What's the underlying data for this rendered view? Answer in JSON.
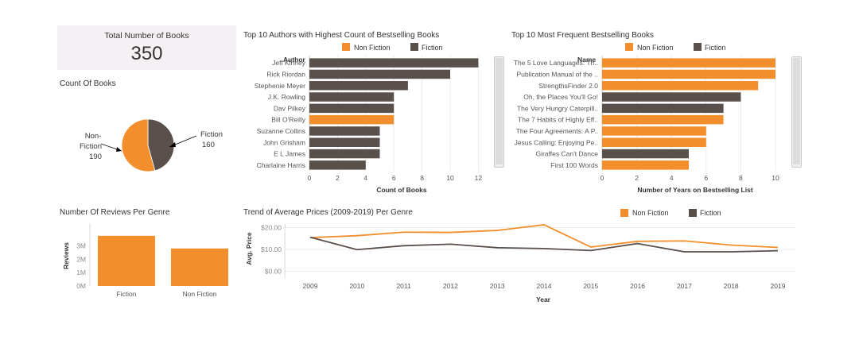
{
  "colors": {
    "non_fiction": "#f28e2b",
    "fiction": "#59504b",
    "pie_nf": "#f28e2b",
    "pie_f": "#59504b",
    "axis": "#d9d9d9",
    "text": "#555555"
  },
  "kpi": {
    "title": "Total Number of Books",
    "value": "350"
  },
  "pie": {
    "title": "Count Of Books",
    "nf_label_1": "Non-",
    "nf_label_2": "Fiction",
    "nf_value": "190",
    "f_label": "Fiction",
    "f_value": "160",
    "chart_data": {
      "type": "pie",
      "slices": [
        {
          "name": "Non-Fiction",
          "value": 190
        },
        {
          "name": "Fiction",
          "value": 160
        }
      ]
    }
  },
  "authors": {
    "title": "Top 10 Authors with Highest Count of Bestselling Books",
    "legend": {
      "nf": "Non Fiction",
      "f": "Fiction"
    },
    "y_header": "Author",
    "xlabel": "Count of Books",
    "ticks": [
      "0",
      "2",
      "4",
      "6",
      "8",
      "10",
      "12"
    ],
    "chart_data": {
      "type": "bar",
      "orientation": "horizontal",
      "categories": [
        "Jeff Kinney",
        "Rick Riordan",
        "Stephenie Meyer",
        "J.K. Rowling",
        "Dav Pilkey",
        "Bill O'Reilly",
        "Suzanne Collins",
        "John Grisham",
        "E L James",
        "Charlaine Harris"
      ],
      "values": [
        12,
        10,
        7,
        6,
        6,
        6,
        5,
        5,
        5,
        4
      ],
      "genre": [
        "Fiction",
        "Fiction",
        "Fiction",
        "Fiction",
        "Fiction",
        "Non Fiction",
        "Fiction",
        "Fiction",
        "Fiction",
        "Fiction"
      ],
      "xlabel": "Count of Books",
      "xlim": [
        0,
        13
      ]
    }
  },
  "books": {
    "title": "Top 10 Most Frequent Bestselling Books",
    "legend": {
      "nf": "Non Fiction",
      "f": "Fiction"
    },
    "y_header": "Name",
    "xlabel": "Number of Years on Bestselling List",
    "ticks": [
      "0",
      "2",
      "4",
      "6",
      "8",
      "10"
    ],
    "chart_data": {
      "type": "bar",
      "orientation": "horizontal",
      "categories": [
        "The 5 Love Languages: Th..",
        "Publication Manual of the ..",
        "StrengthsFinder 2.0",
        "Oh, the Places You'll Go!",
        "The Very Hungry Caterpill..",
        "The 7 Habits of Highly Eff..",
        "The Four Agreements: A P..",
        "Jesus Calling: Enjoying Pe..",
        "Giraffes Can't Dance",
        "First 100 Words"
      ],
      "values": [
        10,
        10,
        9,
        8,
        7,
        7,
        6,
        6,
        5,
        5
      ],
      "genre": [
        "Non Fiction",
        "Non Fiction",
        "Non Fiction",
        "Fiction",
        "Fiction",
        "Non Fiction",
        "Non Fiction",
        "Non Fiction",
        "Fiction",
        "Non Fiction"
      ],
      "xlabel": "Number of Years on Bestselling List",
      "xlim": [
        0,
        11
      ]
    }
  },
  "reviews": {
    "title": "Number Of Reviews Per Genre",
    "ylabel": "Reviews",
    "ticks": [
      "0M",
      "1M",
      "2M",
      "3M"
    ],
    "chart_data": {
      "type": "bar",
      "categories": [
        "Fiction",
        "Non Fiction"
      ],
      "values": [
        3760000,
        2810000
      ],
      "ylabel": "Reviews",
      "ylim": [
        0,
        3900000
      ]
    }
  },
  "trend": {
    "title": "Trend of Average Prices (2009-2019) Per Genre",
    "legend": {
      "nf": "Non Fiction",
      "f": "Fiction"
    },
    "ylabel": "Avg. Price",
    "xlabel": "Year",
    "yticks": [
      "$0.00",
      "$10.00",
      "$20.00"
    ],
    "chart_data": {
      "type": "line",
      "x": [
        "2009",
        "2010",
        "2011",
        "2012",
        "2013",
        "2014",
        "2015",
        "2016",
        "2017",
        "2018",
        "2019"
      ],
      "series": [
        {
          "name": "Non Fiction",
          "values": [
            15.4,
            16.3,
            17.9,
            17.8,
            18.7,
            21.3,
            11.1,
            13.7,
            13.9,
            12.0,
            10.9
          ]
        },
        {
          "name": "Fiction",
          "values": [
            15.6,
            9.9,
            11.7,
            12.4,
            10.8,
            10.4,
            9.5,
            12.7,
            8.9,
            8.9,
            9.4
          ]
        }
      ],
      "xlabel": "Year",
      "ylabel": "Avg. Price",
      "ylim": [
        0,
        22
      ]
    }
  }
}
